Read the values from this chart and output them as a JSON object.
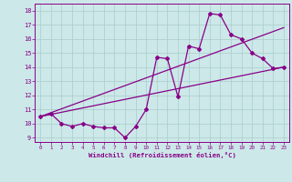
{
  "xlabel": "Windchill (Refroidissement éolien,°C)",
  "bg_color": "#cce8e8",
  "line_color": "#880088",
  "grid_color": "#aacccc",
  "xlim": [
    -0.5,
    23.5
  ],
  "ylim": [
    8.7,
    18.5
  ],
  "xticks": [
    0,
    1,
    2,
    3,
    4,
    5,
    6,
    7,
    8,
    9,
    10,
    11,
    12,
    13,
    14,
    15,
    16,
    17,
    18,
    19,
    20,
    21,
    22,
    23
  ],
  "yticks": [
    9,
    10,
    11,
    12,
    13,
    14,
    15,
    16,
    17,
    18
  ],
  "data_line": {
    "x": [
      0,
      1,
      2,
      3,
      4,
      5,
      6,
      7,
      8,
      9,
      10,
      11,
      12,
      13,
      14,
      15,
      16,
      17,
      18,
      19,
      20,
      21,
      22,
      23
    ],
    "y": [
      10.5,
      10.7,
      10.0,
      9.8,
      10.0,
      9.8,
      9.7,
      9.7,
      9.0,
      9.8,
      11.0,
      14.7,
      14.6,
      11.9,
      15.5,
      15.3,
      17.8,
      17.7,
      16.3,
      16.0,
      15.0,
      14.6,
      13.9,
      14.0
    ]
  },
  "reg_line1": {
    "x": [
      0,
      23
    ],
    "y": [
      10.5,
      14.0
    ]
  },
  "reg_line2": {
    "x": [
      0,
      23
    ],
    "y": [
      10.5,
      16.8
    ]
  }
}
